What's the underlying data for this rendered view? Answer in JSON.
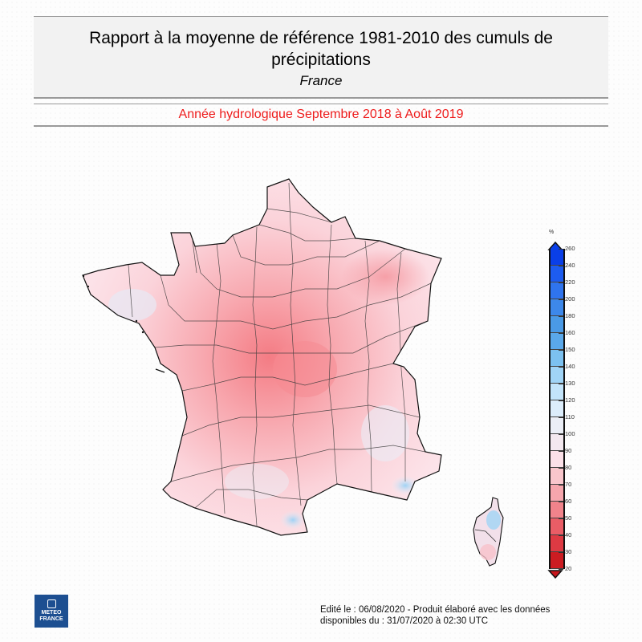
{
  "header": {
    "title": "Rapport à la moyenne de référence 1981-2010 des cumuls de précipitations",
    "region": "France",
    "period": "Année hydrologique  Septembre 2018 à Août 2019",
    "period_color": "#ee1c1c"
  },
  "legend": {
    "unit": "%",
    "ticks": [
      "260",
      "240",
      "220",
      "200",
      "180",
      "160",
      "150",
      "140",
      "130",
      "120",
      "110",
      "100",
      "90",
      "80",
      "70",
      "60",
      "50",
      "40",
      "30",
      "20"
    ],
    "colors": [
      "#0a3fe8",
      "#1d5cf0",
      "#2f74ee",
      "#3d88ea",
      "#4a9ae6",
      "#5aa8ea",
      "#7cc1f0",
      "#a0d4f6",
      "#c3e4fa",
      "#dcedfb",
      "#ebeef6",
      "#f3e8ef",
      "#fbe0e8",
      "#f9c6cc",
      "#f6a6ad",
      "#f1838b",
      "#ea5d66",
      "#de3a43",
      "#cc1c22"
    ],
    "top_arrow_color": "#0a3fe8",
    "bottom_arrow_color": "#c8161c"
  },
  "map": {
    "name": "France",
    "inset": "Corse",
    "note": "Carte des départements colorée selon le rapport à la normale (majoritairement 60-100 %)"
  },
  "logo": {
    "line1": "METEO",
    "line2": "FRANCE"
  },
  "footer": {
    "line1": "Edité le : 06/08/2020 - Produit élaboré avec les données",
    "line2": "disponibles du : 31/07/2020 à 02:30 UTC"
  }
}
